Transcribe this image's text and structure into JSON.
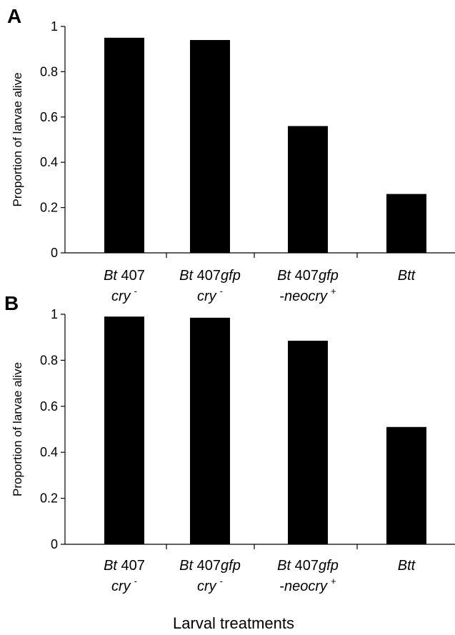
{
  "x_axis_title": "Larval treatments",
  "categories": [
    {
      "parts": [
        {
          "t": "Bt",
          "i": true
        },
        {
          "t": " 407",
          "i": false
        }
      ],
      "line2": [
        {
          "t": "cry",
          "i": true
        }
      ],
      "sup": "-"
    },
    {
      "parts": [
        {
          "t": "Bt",
          "i": true
        },
        {
          "t": " 407",
          "i": false
        },
        {
          "t": "gfp",
          "i": true
        }
      ],
      "line2": [
        {
          "t": "cry",
          "i": true
        }
      ],
      "sup": "-"
    },
    {
      "parts": [
        {
          "t": "Bt",
          "i": true
        },
        {
          "t": " 407",
          "i": false
        },
        {
          "t": "gfp",
          "i": true
        }
      ],
      "line2": [
        {
          "t": "-",
          "i": false
        },
        {
          "t": "neocry",
          "i": true
        }
      ],
      "sup": "+"
    },
    {
      "parts": [
        {
          "t": "Btt",
          "i": true
        }
      ],
      "line2": [],
      "sup": ""
    }
  ],
  "chart_data": [
    {
      "type": "bar",
      "panel_label": "A",
      "ylabel": "Proportion of larvae alive",
      "ylim": [
        0,
        1
      ],
      "yticks": [
        "0",
        "0.2",
        "0.4",
        "0.6",
        "0.8",
        "1"
      ],
      "categories": [
        "Bt 407 cry -",
        "Bt 407gfp cry -",
        "Bt 407gfp -neocry +",
        "Btt"
      ],
      "values": [
        0.95,
        0.94,
        0.56,
        0.26
      ],
      "bar_color": "#000000"
    },
    {
      "type": "bar",
      "panel_label": "B",
      "ylabel": "Proportion of larvae alive",
      "ylim": [
        0,
        1
      ],
      "yticks": [
        "0",
        "0.2",
        "0.4",
        "0.6",
        "0.8",
        "1"
      ],
      "categories": [
        "Bt 407 cry -",
        "Bt 407gfp cry -",
        "Bt 407gfp -neocry +",
        "Btt"
      ],
      "values": [
        0.99,
        0.985,
        0.885,
        0.51
      ],
      "bar_color": "#000000"
    }
  ]
}
